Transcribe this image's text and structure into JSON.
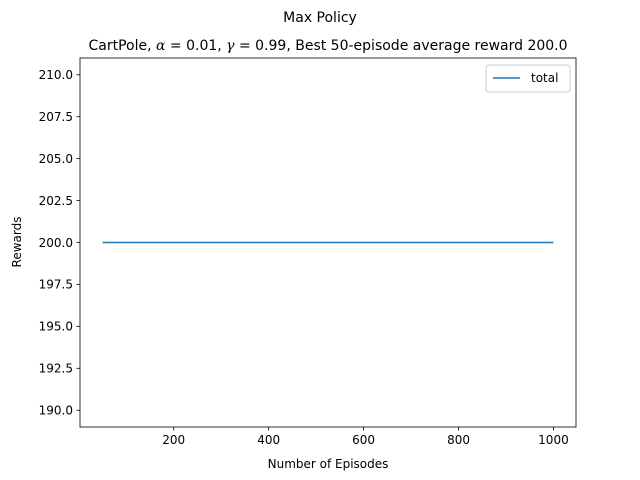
{
  "chart_data": {
    "type": "line",
    "title": "Max Policy",
    "subtitle_parts": {
      "prefix": "CartPole, ",
      "alpha_symbol": "α",
      "alpha_rest": " = 0.01, ",
      "gamma_symbol": "γ",
      "gamma_rest": " = 0.99, Best 50-episode average reward 200.0"
    },
    "xlabel": "Number of Episodes",
    "ylabel": "Rewards",
    "xlim": [
      2.5,
      1047.5
    ],
    "ylim": [
      189,
      211
    ],
    "x_ticks": [
      200,
      400,
      600,
      800,
      1000
    ],
    "x_tick_labels": [
      "200",
      "400",
      "600",
      "800",
      "1000"
    ],
    "y_ticks": [
      190.0,
      192.5,
      195.0,
      197.5,
      200.0,
      202.5,
      205.0,
      207.5,
      210.0
    ],
    "y_tick_labels": [
      "190.0",
      "192.5",
      "195.0",
      "197.5",
      "200.0",
      "202.5",
      "205.0",
      "207.5",
      "210.0"
    ],
    "grid": false,
    "legend_position": "top-right",
    "series": [
      {
        "name": "total",
        "color": "#1f77b4",
        "x": [
          50,
          1000
        ],
        "y": [
          200.0,
          200.0
        ]
      }
    ]
  }
}
